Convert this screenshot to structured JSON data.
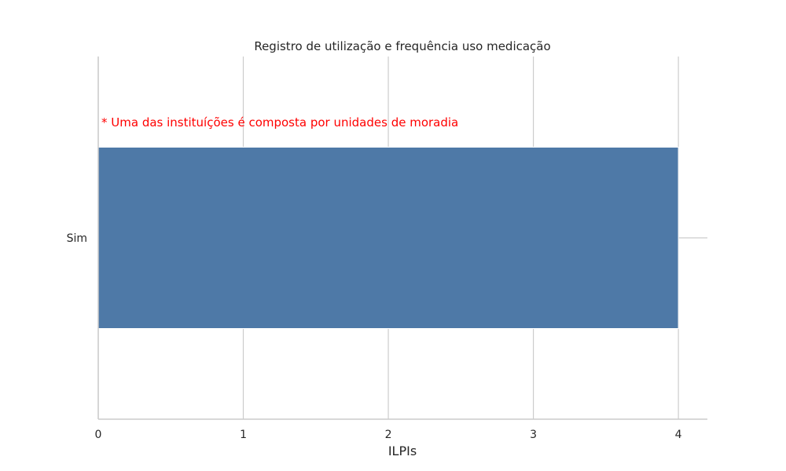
{
  "chart_data": {
    "type": "bar",
    "orientation": "horizontal",
    "title": "Registro de utilização e frequência uso medicação",
    "xlabel": "ILPIs",
    "ylabel": "",
    "categories": [
      "Sim"
    ],
    "values": [
      4
    ],
    "xlim": [
      0,
      4.2
    ],
    "xticks": [
      "0",
      "1",
      "2",
      "3",
      "4"
    ],
    "grid": true,
    "bar_color": "#4e79a7",
    "annotation": {
      "text": "* Uma das instituíções é composta por unidades de moradia",
      "color": "#ff0000"
    }
  }
}
